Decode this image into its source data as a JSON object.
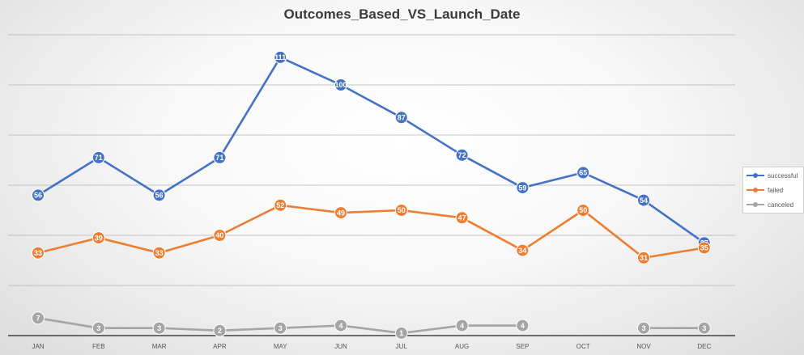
{
  "chart_data": {
    "type": "line",
    "title": "Outcomes_Based_VS_Launch_Date",
    "categories": [
      "JAN",
      "FEB",
      "MAR",
      "APR",
      "MAY",
      "JUN",
      "JUL",
      "AUG",
      "SEP",
      "OCT",
      "NOV",
      "DEC"
    ],
    "series": [
      {
        "name": "successful",
        "color": "#4472C4",
        "values": [
          56,
          71,
          56,
          71,
          111,
          100,
          87,
          72,
          59,
          65,
          54,
          37
        ]
      },
      {
        "name": "failed",
        "color": "#ED7D31",
        "values": [
          33,
          39,
          33,
          40,
          52,
          49,
          50,
          47,
          34,
          50,
          31,
          35
        ]
      },
      {
        "name": "canceled",
        "color": "#A5A5A5",
        "values": [
          7,
          3,
          3,
          2,
          3,
          4,
          1,
          4,
          4,
          null,
          3,
          3
        ]
      }
    ],
    "ylim": [
      0,
      120
    ],
    "gridlines": [
      0,
      20,
      40,
      60,
      80,
      100,
      120
    ],
    "grid": true,
    "legend_position": "right"
  }
}
